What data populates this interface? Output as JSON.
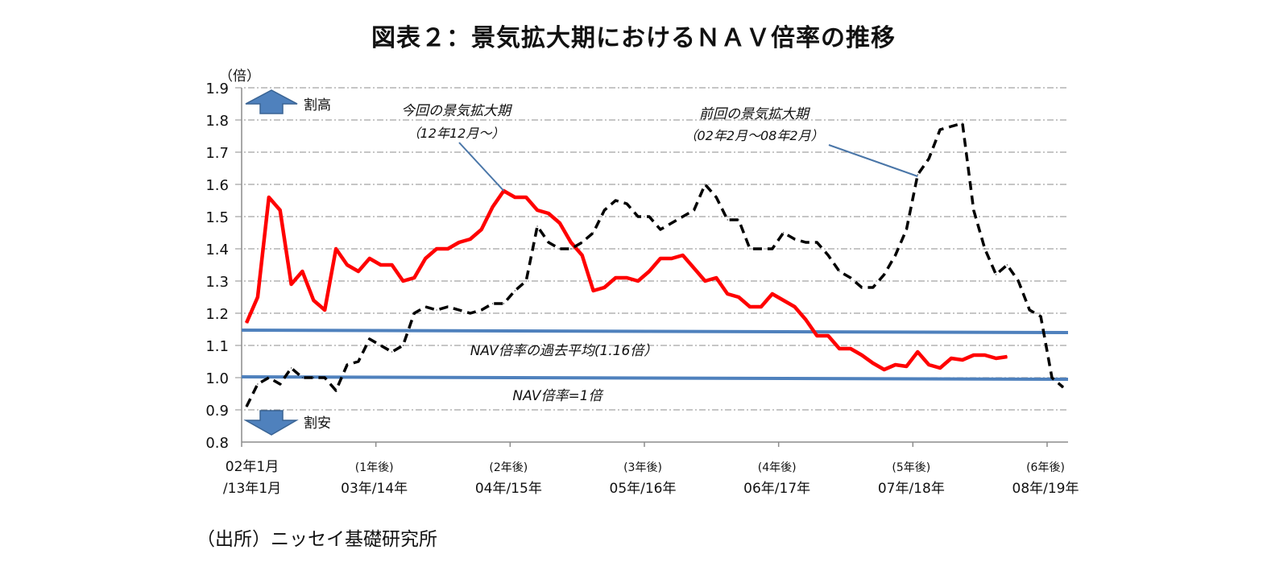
{
  "chart_data": {
    "type": "line",
    "title": "図表２：景気拡大期におけるＮＡＶ倍率の推移",
    "ylabel": "（倍）",
    "ylim": [
      0.8,
      1.9
    ],
    "yticks": [
      "0.8",
      "0.9",
      "1.0",
      "1.1",
      "1.2",
      "1.3",
      "1.4",
      "1.5",
      "1.6",
      "1.7",
      "1.8",
      "1.9"
    ],
    "grid": true,
    "x_unit": "months since start",
    "xlim": [
      0,
      73
    ],
    "xticks": [
      {
        "month": 0,
        "top": "02年1月",
        "bottom": "/13年1月"
      },
      {
        "month": 12,
        "top": "(1年後)",
        "bottom": "03年/14年"
      },
      {
        "month": 24,
        "top": "(2年後)",
        "bottom": "04年/15年"
      },
      {
        "month": 36,
        "top": "(3年後)",
        "bottom": "05年/16年"
      },
      {
        "month": 48,
        "top": "(4年後)",
        "bottom": "06年/17年"
      },
      {
        "month": 60,
        "top": "(5年後)",
        "bottom": "07年/18年"
      },
      {
        "month": 72,
        "top": "(6年後)",
        "bottom": "08年/19年"
      }
    ],
    "series": [
      {
        "name": "今回の景気拡大期",
        "color": "#ff0000",
        "style": "solid",
        "values": [
          1.17,
          1.25,
          1.56,
          1.52,
          1.29,
          1.33,
          1.24,
          1.21,
          1.4,
          1.35,
          1.33,
          1.37,
          1.35,
          1.35,
          1.3,
          1.31,
          1.37,
          1.4,
          1.4,
          1.42,
          1.43,
          1.46,
          1.53,
          1.58,
          1.56,
          1.56,
          1.52,
          1.51,
          1.48,
          1.42,
          1.38,
          1.27,
          1.28,
          1.31,
          1.31,
          1.3,
          1.33,
          1.37,
          1.37,
          1.38,
          1.34,
          1.3,
          1.31,
          1.26,
          1.25,
          1.22,
          1.22,
          1.26,
          1.24,
          1.22,
          1.18,
          1.13,
          1.13,
          1.09,
          1.09,
          1.07,
          1.045,
          1.025,
          1.04,
          1.035,
          1.08,
          1.04,
          1.03,
          1.06,
          1.055,
          1.07,
          1.07,
          1.06,
          1.065
        ]
      },
      {
        "name": "前回の景気拡大期",
        "color": "#000000",
        "style": "dashed",
        "values": [
          0.91,
          0.98,
          1.0,
          0.98,
          1.03,
          1.0,
          1.0,
          1.0,
          0.96,
          1.04,
          1.05,
          1.12,
          1.1,
          1.08,
          1.1,
          1.2,
          1.22,
          1.21,
          1.22,
          1.21,
          1.2,
          1.21,
          1.23,
          1.23,
          1.27,
          1.3,
          1.47,
          1.42,
          1.4,
          1.4,
          1.42,
          1.45,
          1.52,
          1.55,
          1.54,
          1.5,
          1.5,
          1.46,
          1.48,
          1.5,
          1.52,
          1.6,
          1.56,
          1.49,
          1.49,
          1.4,
          1.4,
          1.4,
          1.45,
          1.43,
          1.42,
          1.42,
          1.38,
          1.33,
          1.31,
          1.28,
          1.28,
          1.32,
          1.38,
          1.46,
          1.63,
          1.68,
          1.77,
          1.78,
          1.79,
          1.52,
          1.4,
          1.32,
          1.35,
          1.3,
          1.21,
          1.19,
          1.0,
          0.97
        ]
      }
    ],
    "reference_lines": [
      {
        "name": "NAV倍率の過去平均(1.16倍)",
        "value": 1.16,
        "label": "NAV倍率の過去平均(1.16倍）",
        "color": "#4f81bd"
      },
      {
        "name": "NAV倍率=1倍",
        "value": 1.0,
        "label": "NAV倍率=1倍",
        "color": "#4f81bd"
      }
    ],
    "annotations": [
      {
        "line1": "今回の景気拡大期",
        "line2": "（12年12月～）",
        "points_to_series": 0,
        "points_to_month": 23
      },
      {
        "line1": "前回の景気拡大期",
        "line2": "（02年2月～08年2月）",
        "points_to_series": 1,
        "points_to_month": 60
      }
    ],
    "markers": [
      {
        "label": "割高",
        "direction": "up",
        "color": "#4f81bd"
      },
      {
        "label": "割安",
        "direction": "down",
        "color": "#4f81bd"
      }
    ]
  },
  "source": "（出所）ニッセイ基礎研究所"
}
